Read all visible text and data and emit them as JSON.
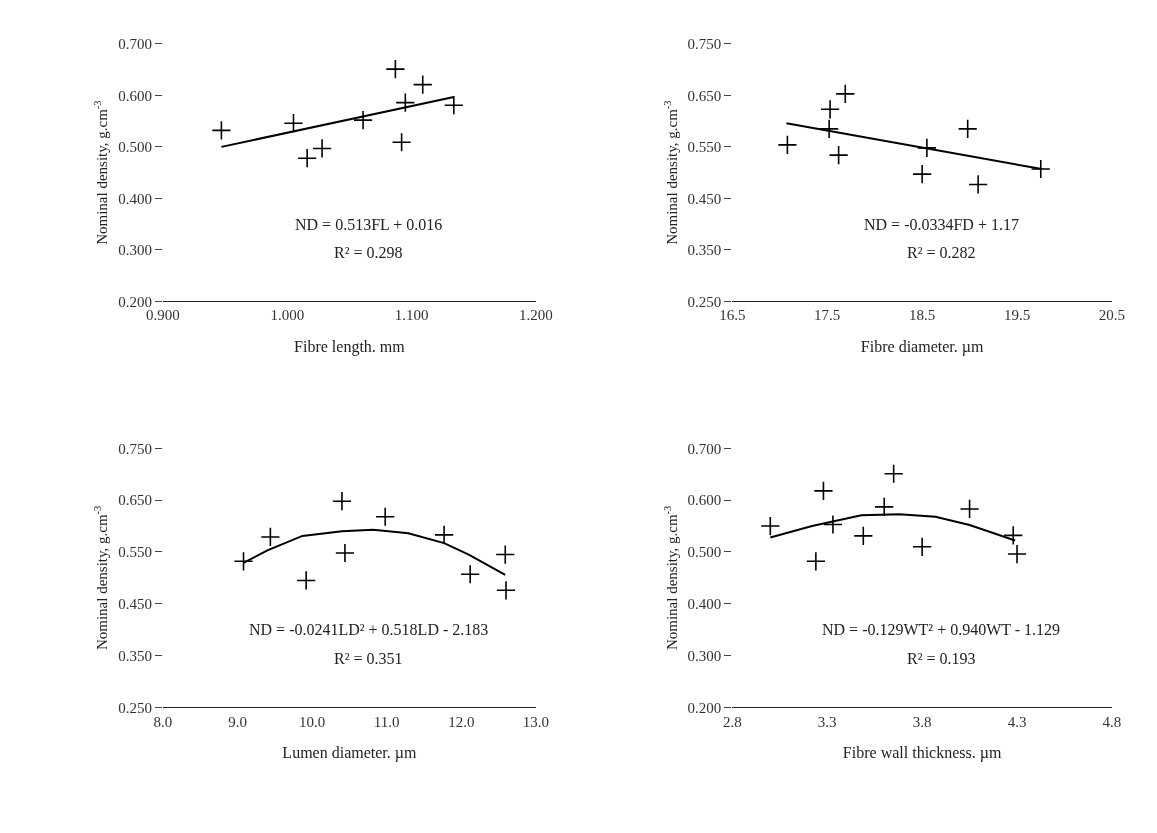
{
  "chart_data": [
    {
      "type": "scatter",
      "xlabel": "Fibre length. mm",
      "ylabel": "Nominal density, g.cm$^{-3}$",
      "marker": "cross",
      "grid": false,
      "xlim": [
        0.9,
        1.2
      ],
      "xticks": [
        {
          "value": 0.9,
          "label": "0.900"
        },
        {
          "value": 1.0,
          "label": "1.000"
        },
        {
          "value": 1.1,
          "label": "1.100"
        },
        {
          "value": 1.2,
          "label": "1.200"
        }
      ],
      "ylim": [
        0.2,
        0.7
      ],
      "yticks": [
        {
          "value": 0.2,
          "label": "0.200"
        },
        {
          "value": 0.3,
          "label": "0.300"
        },
        {
          "value": 0.4,
          "label": "0.400"
        },
        {
          "value": 0.5,
          "label": "0.500"
        },
        {
          "value": 0.6,
          "label": "0.600"
        },
        {
          "value": 0.7,
          "label": "0.700"
        }
      ],
      "annotations": [
        "ND = 0.513FL + 0.016",
        "R² = 0.298"
      ],
      "series": [
        {
          "color": "#000000",
          "x": [
            0.947,
            1.005,
            1.016,
            1.028,
            1.061,
            1.087,
            1.092,
            1.095,
            1.109,
            1.134
          ],
          "values": [
            0.532,
            0.546,
            0.478,
            0.497,
            0.552,
            0.651,
            0.509,
            0.586,
            0.621,
            0.581
          ]
        },
        {
          "type": "line",
          "color": "#000000",
          "marker": "none",
          "x": [
            0.947,
            1.134
          ],
          "values": [
            0.5,
            0.597
          ]
        }
      ]
    },
    {
      "type": "scatter",
      "xlabel": "Fibre diameter. µm",
      "ylabel": "Nominal density, g.cm$^{-3}$",
      "marker": "cross",
      "grid": false,
      "xlim": [
        16.5,
        20.5
      ],
      "xticks": [
        16.5,
        17.5,
        18.5,
        19.5,
        20.5
      ],
      "ylim": [
        0.25,
        0.75
      ],
      "yticks": [
        {
          "value": 0.25,
          "label": "0.250"
        },
        {
          "value": 0.35,
          "label": "0.350"
        },
        {
          "value": 0.45,
          "label": "0.450"
        },
        {
          "value": 0.55,
          "label": "0.550"
        },
        {
          "value": 0.65,
          "label": "0.650"
        },
        {
          "value": 0.75,
          "label": "0.750"
        }
      ],
      "annotations": [
        "ND = -0.0334FD + 1.17",
        "R² = 0.282"
      ],
      "series": [
        {
          "color": "#000000",
          "x": [
            17.08,
            17.53,
            17.69,
            17.52,
            17.62,
            18.55,
            18.5,
            18.98,
            19.09,
            19.75
          ],
          "values": [
            0.554,
            0.623,
            0.653,
            0.585,
            0.534,
            0.548,
            0.497,
            0.585,
            0.477,
            0.507
          ]
        },
        {
          "type": "line",
          "color": "#000000",
          "marker": "none",
          "x": [
            17.07,
            19.76
          ],
          "values": [
            0.596,
            0.507
          ]
        }
      ]
    },
    {
      "type": "scatter",
      "xlabel": "Lumen diameter. µm",
      "ylabel": "Nominal density, g.cm$^{-3}$",
      "marker": "cross",
      "grid": false,
      "xlim": [
        8.0,
        13.0
      ],
      "xticks": [
        {
          "value": 8,
          "label": "8.0"
        },
        {
          "value": 9,
          "label": "9.0"
        },
        {
          "value": 10,
          "label": "10.0"
        },
        {
          "value": 11,
          "label": "11.0"
        },
        {
          "value": 12,
          "label": "12.0"
        },
        {
          "value": 13,
          "label": "13.0"
        }
      ],
      "ylim": [
        0.25,
        0.75
      ],
      "yticks": [
        {
          "value": 0.25,
          "label": "0.250"
        },
        {
          "value": 0.35,
          "label": "0.350"
        },
        {
          "value": 0.45,
          "label": "0.450"
        },
        {
          "value": 0.55,
          "label": "0.550"
        },
        {
          "value": 0.65,
          "label": "0.650"
        },
        {
          "value": 0.75,
          "label": "0.750"
        }
      ],
      "annotations": [
        "ND = -0.0241LD² + 0.518LD - 2.183",
        "R² = 0.351"
      ],
      "series": [
        {
          "color": "#000000",
          "x": [
            9.08,
            9.44,
            9.92,
            10.4,
            10.44,
            10.98,
            11.77,
            12.12,
            12.59,
            12.6
          ],
          "values": [
            0.532,
            0.579,
            0.495,
            0.648,
            0.548,
            0.618,
            0.583,
            0.507,
            0.545,
            0.476
          ]
        },
        {
          "type": "line",
          "color": "#000000",
          "marker": "none",
          "x": [
            9.08,
            9.4,
            9.87,
            10.4,
            10.82,
            11.29,
            11.77,
            12.1,
            12.59
          ],
          "values": [
            0.529,
            0.553,
            0.581,
            0.59,
            0.593,
            0.586,
            0.567,
            0.545,
            0.506
          ]
        }
      ]
    },
    {
      "type": "scatter",
      "xlabel": "Fibre wall thickness. µm",
      "ylabel": "Nominal density, g.cm$^{-3}$",
      "marker": "cross",
      "grid": false,
      "xlim": [
        2.8,
        4.8
      ],
      "xticks": [
        2.8,
        3.3,
        3.8,
        4.3,
        4.8
      ],
      "ylim": [
        0.2,
        0.7
      ],
      "yticks": [
        {
          "value": 0.2,
          "label": "0.200"
        },
        {
          "value": 0.3,
          "label": "0.300"
        },
        {
          "value": 0.4,
          "label": "0.400"
        },
        {
          "value": 0.5,
          "label": "0.500"
        },
        {
          "value": 0.6,
          "label": "0.600"
        },
        {
          "value": 0.7,
          "label": "0.700"
        }
      ],
      "annotations": [
        "ND = -0.129WT² + 0.940WT - 1.129",
        "R² = 0.193"
      ],
      "series": [
        {
          "color": "#000000",
          "x": [
            3.0,
            3.28,
            3.24,
            3.33,
            3.49,
            3.6,
            3.65,
            3.8,
            4.05,
            4.28,
            4.3
          ],
          "values": [
            0.55,
            0.618,
            0.482,
            0.553,
            0.531,
            0.587,
            0.651,
            0.51,
            0.583,
            0.532,
            0.496
          ]
        },
        {
          "type": "line",
          "color": "#000000",
          "marker": "none",
          "x": [
            3.0,
            3.22,
            3.48,
            3.68,
            3.87,
            4.05,
            4.29
          ],
          "values": [
            0.528,
            0.55,
            0.571,
            0.573,
            0.568,
            0.552,
            0.522
          ]
        }
      ]
    }
  ]
}
